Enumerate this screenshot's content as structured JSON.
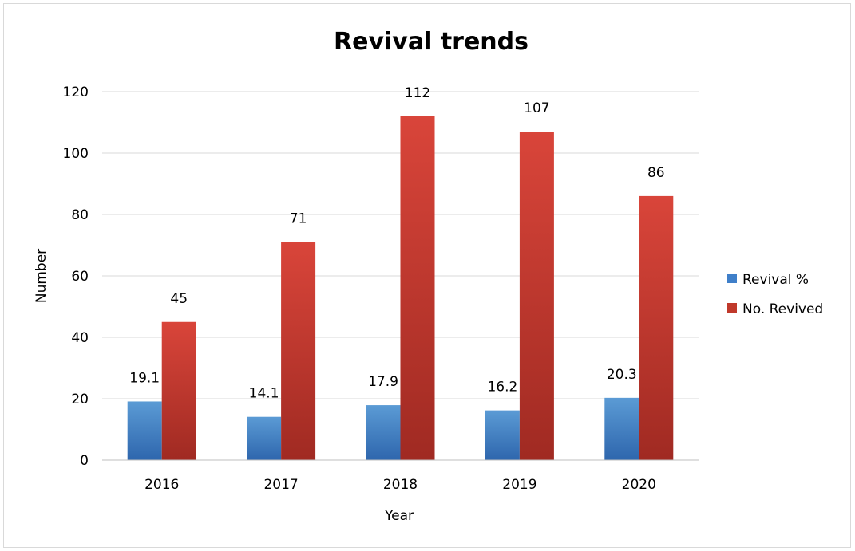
{
  "chart_data": {
    "type": "bar",
    "title": "Revival trends",
    "xlabel": "Year",
    "ylabel": "Number",
    "categories": [
      "2016",
      "2017",
      "2018",
      "2019",
      "2020"
    ],
    "series": [
      {
        "name": "Revival %",
        "values": [
          19.1,
          14.1,
          17.9,
          16.2,
          20.3
        ],
        "labels": [
          "19.1",
          "14.1",
          "17.9",
          "16.2",
          "20.3"
        ],
        "color": "#3f7fc9",
        "color_light": "#5b9bd5",
        "color_dark": "#2e66ad"
      },
      {
        "name": "No. Revived",
        "values": [
          45,
          71,
          112,
          107,
          86
        ],
        "labels": [
          "45",
          "71",
          "112",
          "107",
          "86"
        ],
        "color": "#c0392b",
        "color_light": "#d9453a",
        "color_dark": "#a02a22"
      }
    ],
    "ylim": [
      0,
      120
    ],
    "yticks": [
      "0",
      "20",
      "40",
      "60",
      "80",
      "100",
      "120"
    ],
    "grid": true,
    "legend_position": "right"
  }
}
